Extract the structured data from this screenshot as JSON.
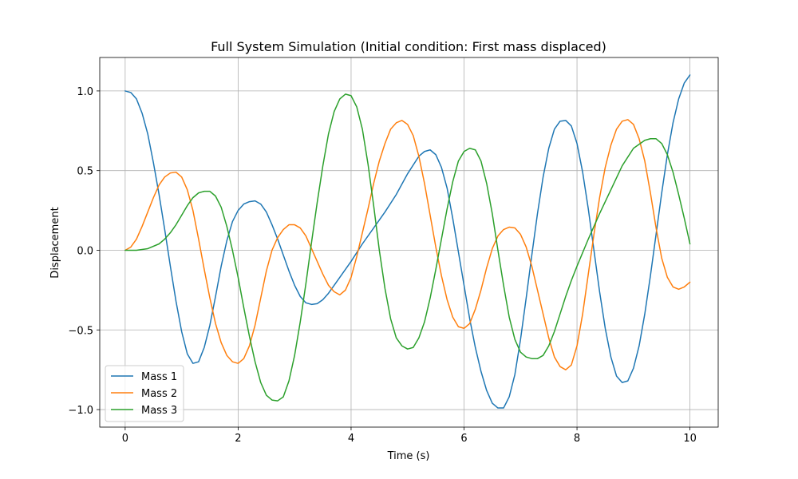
{
  "chart_data": {
    "type": "line",
    "title": "Full System Simulation (Initial condition: First mass displaced)",
    "xlabel": "Time (s)",
    "ylabel": "Displacement",
    "xlim": [
      -0.45,
      10.5
    ],
    "ylim": [
      -1.11,
      1.21
    ],
    "xticks": [
      0,
      2,
      4,
      6,
      8,
      10
    ],
    "xtick_labels": [
      "0",
      "2",
      "4",
      "6",
      "8",
      "10"
    ],
    "yticks": [
      -1.0,
      -0.5,
      0.0,
      0.5,
      1.0
    ],
    "ytick_labels": [
      "−1.0",
      "−0.5",
      "0.0",
      "0.5",
      "1.0"
    ],
    "grid": true,
    "legend_position": "lower-left",
    "series": [
      {
        "name": "Mass 1",
        "color": "#1f77b4",
        "points": [
          [
            0,
            1.0
          ],
          [
            0.1,
            0.99
          ],
          [
            0.2,
            0.95
          ],
          [
            0.3,
            0.86
          ],
          [
            0.4,
            0.73
          ],
          [
            0.5,
            0.55
          ],
          [
            0.6,
            0.35
          ],
          [
            0.7,
            0.13
          ],
          [
            0.8,
            -0.1
          ],
          [
            0.9,
            -0.32
          ],
          [
            1.0,
            -0.51
          ],
          [
            1.1,
            -0.65
          ],
          [
            1.2,
            -0.71
          ],
          [
            1.3,
            -0.7
          ],
          [
            1.4,
            -0.61
          ],
          [
            1.5,
            -0.47
          ],
          [
            1.6,
            -0.29
          ],
          [
            1.7,
            -0.1
          ],
          [
            1.8,
            0.06
          ],
          [
            1.9,
            0.18
          ],
          [
            2.0,
            0.25
          ],
          [
            2.1,
            0.29
          ],
          [
            2.2,
            0.305
          ],
          [
            2.3,
            0.31
          ],
          [
            2.4,
            0.29
          ],
          [
            2.5,
            0.24
          ],
          [
            2.6,
            0.16
          ],
          [
            2.7,
            0.07
          ],
          [
            2.8,
            -0.03
          ],
          [
            2.9,
            -0.13
          ],
          [
            3.0,
            -0.22
          ],
          [
            3.1,
            -0.29
          ],
          [
            3.2,
            -0.33
          ],
          [
            3.3,
            -0.34
          ],
          [
            3.4,
            -0.335
          ],
          [
            3.5,
            -0.31
          ],
          [
            3.6,
            -0.27
          ],
          [
            3.7,
            -0.22
          ],
          [
            3.8,
            -0.17
          ],
          [
            3.9,
            -0.12
          ],
          [
            4.0,
            -0.07
          ],
          [
            4.2,
            0.04
          ],
          [
            4.4,
            0.14
          ],
          [
            4.6,
            0.24
          ],
          [
            4.8,
            0.35
          ],
          [
            5.0,
            0.48
          ],
          [
            5.2,
            0.59
          ],
          [
            5.3,
            0.62
          ],
          [
            5.4,
            0.63
          ],
          [
            5.5,
            0.6
          ],
          [
            5.6,
            0.52
          ],
          [
            5.7,
            0.39
          ],
          [
            5.8,
            0.2
          ],
          [
            5.9,
            -0.01
          ],
          [
            6.0,
            -0.22
          ],
          [
            6.1,
            -0.43
          ],
          [
            6.2,
            -0.61
          ],
          [
            6.3,
            -0.76
          ],
          [
            6.4,
            -0.88
          ],
          [
            6.5,
            -0.96
          ],
          [
            6.6,
            -0.99
          ],
          [
            6.7,
            -0.99
          ],
          [
            6.8,
            -0.92
          ],
          [
            6.9,
            -0.78
          ],
          [
            7.0,
            -0.56
          ],
          [
            7.1,
            -0.3
          ],
          [
            7.2,
            -0.03
          ],
          [
            7.3,
            0.23
          ],
          [
            7.4,
            0.46
          ],
          [
            7.5,
            0.64
          ],
          [
            7.6,
            0.76
          ],
          [
            7.7,
            0.81
          ],
          [
            7.8,
            0.815
          ],
          [
            7.9,
            0.78
          ],
          [
            8.0,
            0.67
          ],
          [
            8.1,
            0.49
          ],
          [
            8.2,
            0.26
          ],
          [
            8.3,
            0.0
          ],
          [
            8.4,
            -0.26
          ],
          [
            8.5,
            -0.49
          ],
          [
            8.6,
            -0.67
          ],
          [
            8.7,
            -0.79
          ],
          [
            8.8,
            -0.83
          ],
          [
            8.9,
            -0.82
          ],
          [
            9.0,
            -0.74
          ],
          [
            9.1,
            -0.6
          ],
          [
            9.2,
            -0.4
          ],
          [
            9.3,
            -0.16
          ],
          [
            9.4,
            0.1
          ],
          [
            9.5,
            0.36
          ],
          [
            9.6,
            0.6
          ],
          [
            9.7,
            0.8
          ],
          [
            9.8,
            0.95
          ],
          [
            9.9,
            1.05
          ],
          [
            10.0,
            1.1
          ]
        ]
      },
      {
        "name": "Mass 2",
        "color": "#ff7f0e",
        "points": [
          [
            0,
            0.0
          ],
          [
            0.1,
            0.02
          ],
          [
            0.2,
            0.07
          ],
          [
            0.3,
            0.15
          ],
          [
            0.4,
            0.24
          ],
          [
            0.5,
            0.33
          ],
          [
            0.6,
            0.41
          ],
          [
            0.7,
            0.46
          ],
          [
            0.8,
            0.485
          ],
          [
            0.9,
            0.49
          ],
          [
            1.0,
            0.46
          ],
          [
            1.1,
            0.38
          ],
          [
            1.2,
            0.25
          ],
          [
            1.3,
            0.07
          ],
          [
            1.4,
            -0.12
          ],
          [
            1.5,
            -0.3
          ],
          [
            1.6,
            -0.46
          ],
          [
            1.7,
            -0.58
          ],
          [
            1.8,
            -0.66
          ],
          [
            1.9,
            -0.7
          ],
          [
            2.0,
            -0.71
          ],
          [
            2.1,
            -0.68
          ],
          [
            2.2,
            -0.6
          ],
          [
            2.3,
            -0.47
          ],
          [
            2.4,
            -0.3
          ],
          [
            2.5,
            -0.13
          ],
          [
            2.6,
            0.0
          ],
          [
            2.7,
            0.08
          ],
          [
            2.8,
            0.13
          ],
          [
            2.9,
            0.16
          ],
          [
            3.0,
            0.16
          ],
          [
            3.1,
            0.14
          ],
          [
            3.2,
            0.09
          ],
          [
            3.3,
            0.01
          ],
          [
            3.4,
            -0.07
          ],
          [
            3.5,
            -0.15
          ],
          [
            3.6,
            -0.22
          ],
          [
            3.7,
            -0.26
          ],
          [
            3.8,
            -0.28
          ],
          [
            3.9,
            -0.25
          ],
          [
            4.0,
            -0.17
          ],
          [
            4.1,
            -0.04
          ],
          [
            4.2,
            0.11
          ],
          [
            4.3,
            0.26
          ],
          [
            4.4,
            0.42
          ],
          [
            4.5,
            0.56
          ],
          [
            4.6,
            0.67
          ],
          [
            4.7,
            0.76
          ],
          [
            4.8,
            0.8
          ],
          [
            4.9,
            0.815
          ],
          [
            5.0,
            0.79
          ],
          [
            5.1,
            0.72
          ],
          [
            5.2,
            0.59
          ],
          [
            5.3,
            0.42
          ],
          [
            5.4,
            0.22
          ],
          [
            5.5,
            0.02
          ],
          [
            5.6,
            -0.16
          ],
          [
            5.7,
            -0.31
          ],
          [
            5.8,
            -0.42
          ],
          [
            5.9,
            -0.48
          ],
          [
            6.0,
            -0.49
          ],
          [
            6.1,
            -0.46
          ],
          [
            6.2,
            -0.37
          ],
          [
            6.3,
            -0.25
          ],
          [
            6.4,
            -0.11
          ],
          [
            6.5,
            0.01
          ],
          [
            6.6,
            0.09
          ],
          [
            6.7,
            0.13
          ],
          [
            6.8,
            0.145
          ],
          [
            6.9,
            0.14
          ],
          [
            7.0,
            0.1
          ],
          [
            7.1,
            0.02
          ],
          [
            7.2,
            -0.1
          ],
          [
            7.3,
            -0.25
          ],
          [
            7.4,
            -0.4
          ],
          [
            7.5,
            -0.55
          ],
          [
            7.6,
            -0.67
          ],
          [
            7.7,
            -0.73
          ],
          [
            7.8,
            -0.75
          ],
          [
            7.9,
            -0.72
          ],
          [
            8.0,
            -0.6
          ],
          [
            8.1,
            -0.4
          ],
          [
            8.2,
            -0.15
          ],
          [
            8.3,
            0.1
          ],
          [
            8.4,
            0.33
          ],
          [
            8.5,
            0.52
          ],
          [
            8.6,
            0.66
          ],
          [
            8.7,
            0.76
          ],
          [
            8.8,
            0.81
          ],
          [
            8.9,
            0.82
          ],
          [
            9.0,
            0.79
          ],
          [
            9.1,
            0.7
          ],
          [
            9.2,
            0.56
          ],
          [
            9.3,
            0.36
          ],
          [
            9.4,
            0.14
          ],
          [
            9.5,
            -0.05
          ],
          [
            9.6,
            -0.17
          ],
          [
            9.7,
            -0.23
          ],
          [
            9.8,
            -0.245
          ],
          [
            9.9,
            -0.23
          ],
          [
            10.0,
            -0.2
          ]
        ]
      },
      {
        "name": "Mass 3",
        "color": "#2ca02c",
        "points": [
          [
            0,
            0.0
          ],
          [
            0.2,
            0.0
          ],
          [
            0.4,
            0.01
          ],
          [
            0.6,
            0.04
          ],
          [
            0.7,
            0.07
          ],
          [
            0.8,
            0.11
          ],
          [
            0.9,
            0.16
          ],
          [
            1.0,
            0.22
          ],
          [
            1.1,
            0.28
          ],
          [
            1.2,
            0.33
          ],
          [
            1.3,
            0.36
          ],
          [
            1.4,
            0.37
          ],
          [
            1.5,
            0.37
          ],
          [
            1.6,
            0.34
          ],
          [
            1.7,
            0.27
          ],
          [
            1.8,
            0.15
          ],
          [
            1.9,
            0.0
          ],
          [
            2.0,
            -0.17
          ],
          [
            2.1,
            -0.36
          ],
          [
            2.2,
            -0.54
          ],
          [
            2.3,
            -0.7
          ],
          [
            2.4,
            -0.83
          ],
          [
            2.5,
            -0.91
          ],
          [
            2.6,
            -0.94
          ],
          [
            2.7,
            -0.945
          ],
          [
            2.8,
            -0.92
          ],
          [
            2.9,
            -0.82
          ],
          [
            3.0,
            -0.66
          ],
          [
            3.1,
            -0.45
          ],
          [
            3.2,
            -0.21
          ],
          [
            3.3,
            0.05
          ],
          [
            3.4,
            0.3
          ],
          [
            3.5,
            0.53
          ],
          [
            3.6,
            0.73
          ],
          [
            3.7,
            0.87
          ],
          [
            3.8,
            0.95
          ],
          [
            3.9,
            0.98
          ],
          [
            4.0,
            0.97
          ],
          [
            4.1,
            0.9
          ],
          [
            4.2,
            0.76
          ],
          [
            4.3,
            0.54
          ],
          [
            4.4,
            0.28
          ],
          [
            4.5,
            0.0
          ],
          [
            4.6,
            -0.24
          ],
          [
            4.7,
            -0.43
          ],
          [
            4.8,
            -0.55
          ],
          [
            4.9,
            -0.6
          ],
          [
            5.0,
            -0.62
          ],
          [
            5.1,
            -0.61
          ],
          [
            5.2,
            -0.55
          ],
          [
            5.3,
            -0.45
          ],
          [
            5.4,
            -0.3
          ],
          [
            5.5,
            -0.12
          ],
          [
            5.6,
            0.07
          ],
          [
            5.7,
            0.26
          ],
          [
            5.8,
            0.43
          ],
          [
            5.9,
            0.56
          ],
          [
            6.0,
            0.62
          ],
          [
            6.1,
            0.64
          ],
          [
            6.2,
            0.63
          ],
          [
            6.3,
            0.56
          ],
          [
            6.4,
            0.42
          ],
          [
            6.5,
            0.23
          ],
          [
            6.6,
            0.0
          ],
          [
            6.7,
            -0.22
          ],
          [
            6.8,
            -0.42
          ],
          [
            6.9,
            -0.56
          ],
          [
            7.0,
            -0.64
          ],
          [
            7.1,
            -0.67
          ],
          [
            7.2,
            -0.68
          ],
          [
            7.3,
            -0.68
          ],
          [
            7.4,
            -0.66
          ],
          [
            7.5,
            -0.6
          ],
          [
            7.6,
            -0.51
          ],
          [
            7.7,
            -0.4
          ],
          [
            7.8,
            -0.29
          ],
          [
            7.9,
            -0.19
          ],
          [
            8.0,
            -0.1
          ],
          [
            8.2,
            0.07
          ],
          [
            8.4,
            0.23
          ],
          [
            8.6,
            0.38
          ],
          [
            8.8,
            0.53
          ],
          [
            9.0,
            0.64
          ],
          [
            9.2,
            0.69
          ],
          [
            9.3,
            0.7
          ],
          [
            9.4,
            0.7
          ],
          [
            9.5,
            0.67
          ],
          [
            9.6,
            0.6
          ],
          [
            9.7,
            0.49
          ],
          [
            9.8,
            0.35
          ],
          [
            9.9,
            0.2
          ],
          [
            10.0,
            0.04
          ]
        ]
      }
    ]
  }
}
